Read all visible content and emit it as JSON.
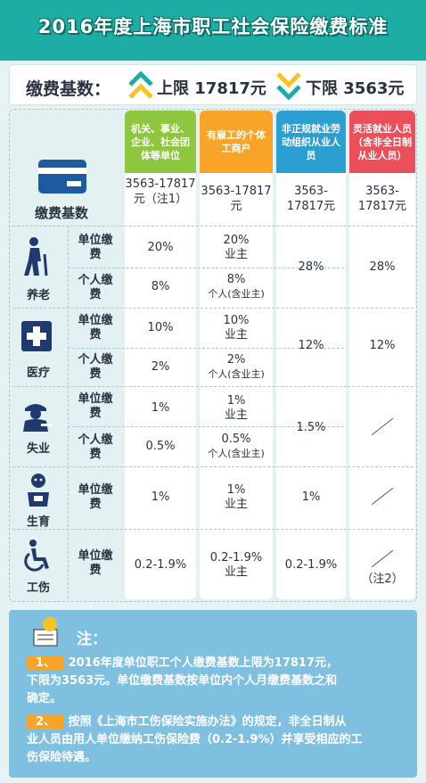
{
  "title": "2016年度上海市职工社会保险缴费标准",
  "base": {
    "label": "缴费基数：",
    "upper": "上限  17817元",
    "lower": "下限  3563元"
  },
  "columns": [
    {
      "header": "机关、事业、企业、社会团体等单位",
      "base": "3563-17817元（注1）"
    },
    {
      "header": "有雇工的个体工商户",
      "base": "3563-17817元"
    },
    {
      "header": "非正规就业劳动组织从业人员",
      "base": "3563-17817元"
    },
    {
      "header": "灵活就业人员（含非全日制从业人员）",
      "base": "3563-17817元"
    }
  ],
  "rows": {
    "base_label": "缴费基数",
    "pension": {
      "label": "养老",
      "unit": "单位缴费",
      "personal": "个人缴费"
    },
    "medical": {
      "label": "医疗",
      "unit": "单位缴费",
      "personal": "个人缴费"
    },
    "unemploy": {
      "label": "失业",
      "unit": "单位缴费",
      "personal": "个人缴费"
    },
    "maternity": {
      "label": "生育",
      "unit": "单位缴费"
    },
    "injury": {
      "label": "工伤",
      "unit": "单位缴费"
    }
  },
  "values": {
    "pension_unit": [
      "20%",
      "20%",
      "业主"
    ],
    "pension_personal": [
      "8%",
      "8%",
      "个人(含业主)"
    ],
    "pension_c3": "28%",
    "pension_c4": "28%",
    "medical_unit": [
      "10%",
      "10%",
      "业主"
    ],
    "medical_personal": [
      "2%",
      "2%",
      "个人(含业主)"
    ],
    "medical_c3": "12%",
    "medical_c4": "12%",
    "unemploy_unit": [
      "1%",
      "1%",
      "业主"
    ],
    "unemploy_personal": [
      "0.5%",
      "0.5%",
      "个人(含业主)"
    ],
    "unemploy_c3": "1.5%",
    "maternity": [
      "1%",
      "1%",
      "业主",
      "1%"
    ],
    "injury": [
      "0.2-1.9%",
      "0.2-1.9%",
      "业主",
      "0.2-1.9%",
      "（注2）"
    ]
  },
  "notes": {
    "head": "注：",
    "n1_num": "1、",
    "n1_a": "2016年度单位职工个人缴费基数上限为17817元，",
    "n1_b": "下限为3563元。单位缴费基数按单位内个人月缴费基数之和",
    "n1_c": "确定。",
    "n2_num": "2、",
    "n2_a": "按照《上海市工伤保险实施办法》的规定，非全日制从",
    "n2_b": "业人员由用人单位缴纳工伤保险费（0.2-1.9%）并享受相应的工",
    "n2_c": "伤保险待遇。"
  },
  "colors": {
    "teal": "#1dada5",
    "green": "#8ec63f",
    "orange": "#f7a428",
    "blue": "#2c9fd2",
    "red": "#ea4f5a"
  }
}
